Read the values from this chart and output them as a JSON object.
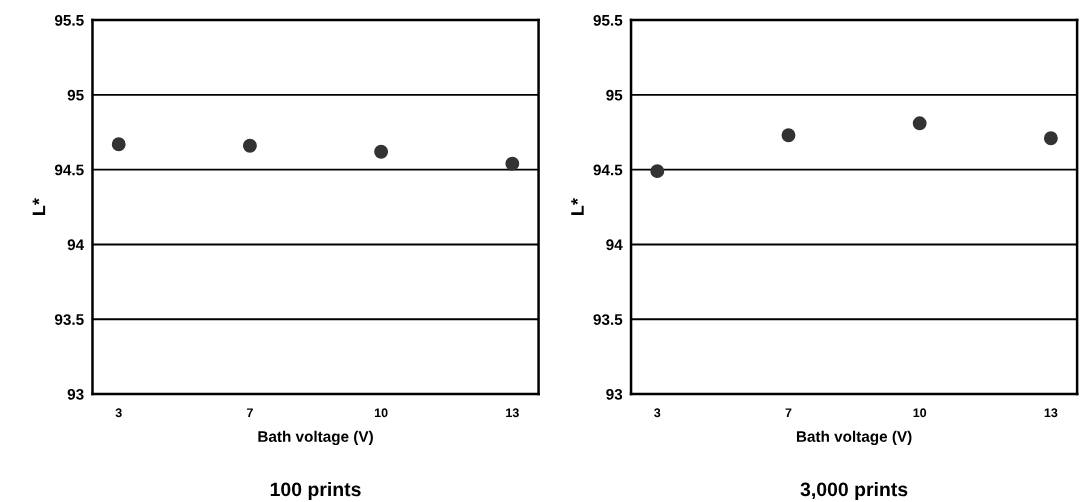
{
  "chart_data": [
    {
      "type": "scatter",
      "title": "100 prints",
      "xlabel": "Bath voltage (V)",
      "ylabel": "L*",
      "categories": [
        "3",
        "7",
        "10",
        "13"
      ],
      "series": [
        {
          "color": "#333333",
          "values": [
            94.67,
            94.66,
            94.62,
            94.54
          ]
        }
      ],
      "ylim": [
        93,
        95.5
      ],
      "yticks": [
        93,
        93.5,
        94,
        94.5,
        95,
        95.5
      ],
      "grid": "y",
      "marker": "circle"
    },
    {
      "type": "scatter",
      "title": "3,000 prints",
      "xlabel": "Bath voltage (V)",
      "ylabel": "L*",
      "categories": [
        "3",
        "7",
        "10",
        "13"
      ],
      "series": [
        {
          "color": "#333333",
          "values": [
            94.49,
            94.73,
            94.81,
            94.71
          ]
        }
      ],
      "ylim": [
        93,
        95.5
      ],
      "yticks": [
        93,
        93.5,
        94,
        94.5,
        95,
        95.5
      ],
      "grid": "y",
      "marker": "circle"
    }
  ]
}
